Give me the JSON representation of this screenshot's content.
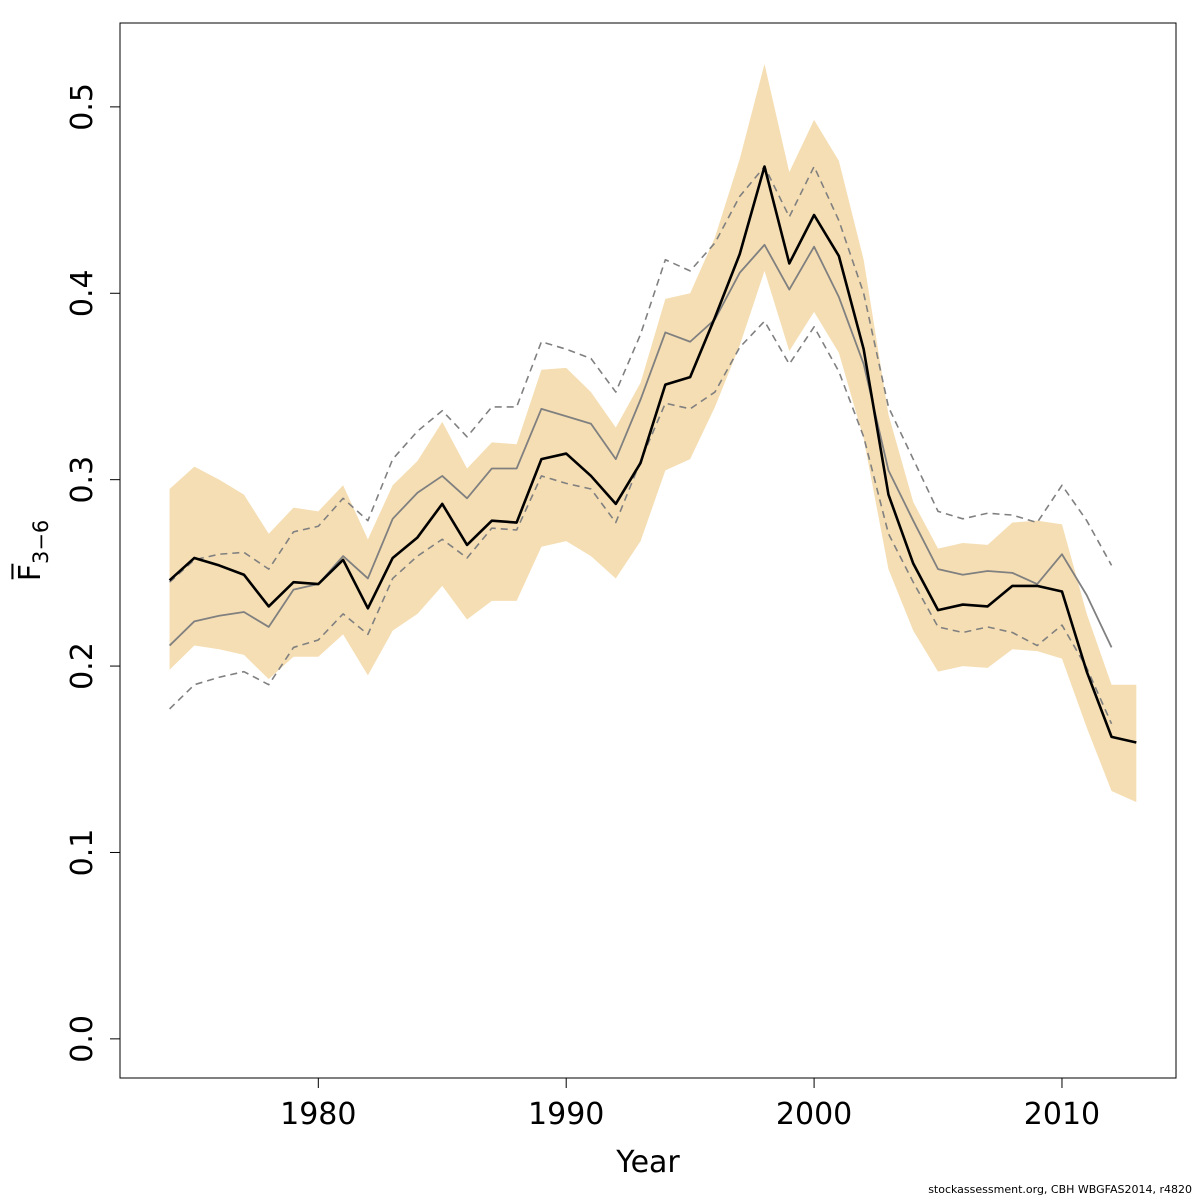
{
  "chart_data": {
    "type": "line",
    "xlabel": "Year",
    "ylabel": "F̅",
    "ylabel_subscript": "3−6",
    "xlim": [
      1972,
      2014.6
    ],
    "ylim": [
      -0.021,
      0.545
    ],
    "x_ticks": [
      1980,
      1990,
      2000,
      2010
    ],
    "x_tick_labels": [
      "1980",
      "1990",
      "2000",
      "2010"
    ],
    "y_ticks": [
      0.0,
      0.1,
      0.2,
      0.3,
      0.4,
      0.5
    ],
    "y_tick_labels": [
      "0.0",
      "0.1",
      "0.2",
      "0.3",
      "0.4",
      "0.5"
    ],
    "grid": false,
    "colors": {
      "band": "#f5deb3",
      "estimate": "#000000",
      "retro": "#808080"
    },
    "band": {
      "x": [
        1974,
        1975,
        1976,
        1977,
        1978,
        1979,
        1980,
        1981,
        1982,
        1983,
        1984,
        1985,
        1986,
        1987,
        1988,
        1989,
        1990,
        1991,
        1992,
        1993,
        1994,
        1995,
        1996,
        1997,
        1998,
        1999,
        2000,
        2001,
        2002,
        2003,
        2004,
        2005,
        2006,
        2007,
        2008,
        2009,
        2010,
        2011,
        2012,
        2013
      ],
      "upper": [
        0.295,
        0.307,
        0.3,
        0.292,
        0.271,
        0.285,
        0.283,
        0.297,
        0.268,
        0.297,
        0.31,
        0.331,
        0.306,
        0.32,
        0.319,
        0.359,
        0.36,
        0.347,
        0.328,
        0.352,
        0.397,
        0.4,
        0.43,
        0.472,
        0.523,
        0.465,
        0.493,
        0.471,
        0.418,
        0.335,
        0.288,
        0.263,
        0.266,
        0.265,
        0.277,
        0.278,
        0.276,
        0.228,
        0.19,
        0.19
      ],
      "lower": [
        0.198,
        0.211,
        0.209,
        0.206,
        0.193,
        0.205,
        0.205,
        0.217,
        0.195,
        0.219,
        0.228,
        0.243,
        0.225,
        0.235,
        0.235,
        0.264,
        0.267,
        0.259,
        0.247,
        0.267,
        0.305,
        0.311,
        0.339,
        0.372,
        0.412,
        0.369,
        0.39,
        0.368,
        0.322,
        0.252,
        0.219,
        0.197,
        0.2,
        0.199,
        0.209,
        0.208,
        0.204,
        0.167,
        0.133,
        0.127
      ]
    },
    "series": [
      {
        "role": "estimate",
        "x": [
          1974,
          1975,
          1976,
          1977,
          1978,
          1979,
          1980,
          1981,
          1982,
          1983,
          1984,
          1985,
          1986,
          1987,
          1988,
          1989,
          1990,
          1991,
          1992,
          1993,
          1994,
          1995,
          1996,
          1997,
          1998,
          1999,
          2000,
          2001,
          2002,
          2003,
          2004,
          2005,
          2006,
          2007,
          2008,
          2009,
          2010,
          2011,
          2012,
          2013
        ],
        "values": [
          0.246,
          0.258,
          0.254,
          0.249,
          0.232,
          0.245,
          0.244,
          0.257,
          0.231,
          0.258,
          0.269,
          0.287,
          0.265,
          0.278,
          0.277,
          0.311,
          0.314,
          0.302,
          0.287,
          0.309,
          0.351,
          0.355,
          0.387,
          0.421,
          0.468,
          0.416,
          0.442,
          0.42,
          0.37,
          0.292,
          0.255,
          0.23,
          0.233,
          0.232,
          0.243,
          0.243,
          0.24,
          0.197,
          0.162,
          0.159
        ]
      },
      {
        "role": "retro-mean",
        "x": [
          1974,
          1975,
          1976,
          1977,
          1978,
          1979,
          1980,
          1981,
          1982,
          1983,
          1984,
          1985,
          1986,
          1987,
          1988,
          1989,
          1990,
          1991,
          1992,
          1993,
          1994,
          1995,
          1996,
          1997,
          1998,
          1999,
          2000,
          2001,
          2002,
          2003,
          2004,
          2005,
          2006,
          2007,
          2008,
          2009,
          2010,
          2011,
          2012
        ],
        "values": [
          0.211,
          0.224,
          0.227,
          0.229,
          0.221,
          0.241,
          0.244,
          0.259,
          0.247,
          0.279,
          0.293,
          0.302,
          0.29,
          0.306,
          0.306,
          0.338,
          0.334,
          0.33,
          0.311,
          0.343,
          0.379,
          0.374,
          0.386,
          0.411,
          0.426,
          0.402,
          0.425,
          0.398,
          0.362,
          0.305,
          0.278,
          0.252,
          0.249,
          0.251,
          0.25,
          0.244,
          0.26,
          0.238,
          0.21
        ]
      },
      {
        "role": "retro-upper",
        "x": [
          1974,
          1975,
          1976,
          1977,
          1978,
          1979,
          1980,
          1981,
          1982,
          1983,
          1984,
          1985,
          1986,
          1987,
          1988,
          1989,
          1990,
          1991,
          1992,
          1993,
          1994,
          1995,
          1996,
          1997,
          1998,
          1999,
          2000,
          2001,
          2002,
          2003,
          2004,
          2005,
          2006,
          2007,
          2008,
          2009,
          2010,
          2011,
          2012
        ],
        "values": [
          0.245,
          0.257,
          0.26,
          0.261,
          0.252,
          0.272,
          0.275,
          0.29,
          0.278,
          0.311,
          0.326,
          0.337,
          0.323,
          0.339,
          0.339,
          0.374,
          0.37,
          0.365,
          0.347,
          0.378,
          0.418,
          0.412,
          0.427,
          0.452,
          0.468,
          0.441,
          0.468,
          0.439,
          0.4,
          0.339,
          0.311,
          0.283,
          0.279,
          0.282,
          0.281,
          0.277,
          0.297,
          0.278,
          0.254
        ]
      },
      {
        "role": "retro-lower",
        "x": [
          1974,
          1975,
          1976,
          1977,
          1978,
          1979,
          1980,
          1981,
          1982,
          1983,
          1984,
          1985,
          1986,
          1987,
          1988,
          1989,
          1990,
          1991,
          1992,
          1993,
          1994,
          1995,
          1996,
          1997,
          1998,
          1999,
          2000,
          2001,
          2002,
          2003,
          2004,
          2005,
          2006,
          2007,
          2008,
          2009,
          2010,
          2011,
          2012
        ],
        "values": [
          0.177,
          0.19,
          0.194,
          0.197,
          0.19,
          0.21,
          0.214,
          0.228,
          0.217,
          0.247,
          0.259,
          0.268,
          0.258,
          0.274,
          0.273,
          0.302,
          0.298,
          0.295,
          0.277,
          0.31,
          0.341,
          0.338,
          0.347,
          0.371,
          0.385,
          0.362,
          0.382,
          0.358,
          0.323,
          0.271,
          0.245,
          0.221,
          0.218,
          0.221,
          0.218,
          0.211,
          0.222,
          0.199,
          0.169
        ]
      }
    ]
  },
  "footer": "stockassessment.org, CBH    WBGFAS2014, r4820"
}
